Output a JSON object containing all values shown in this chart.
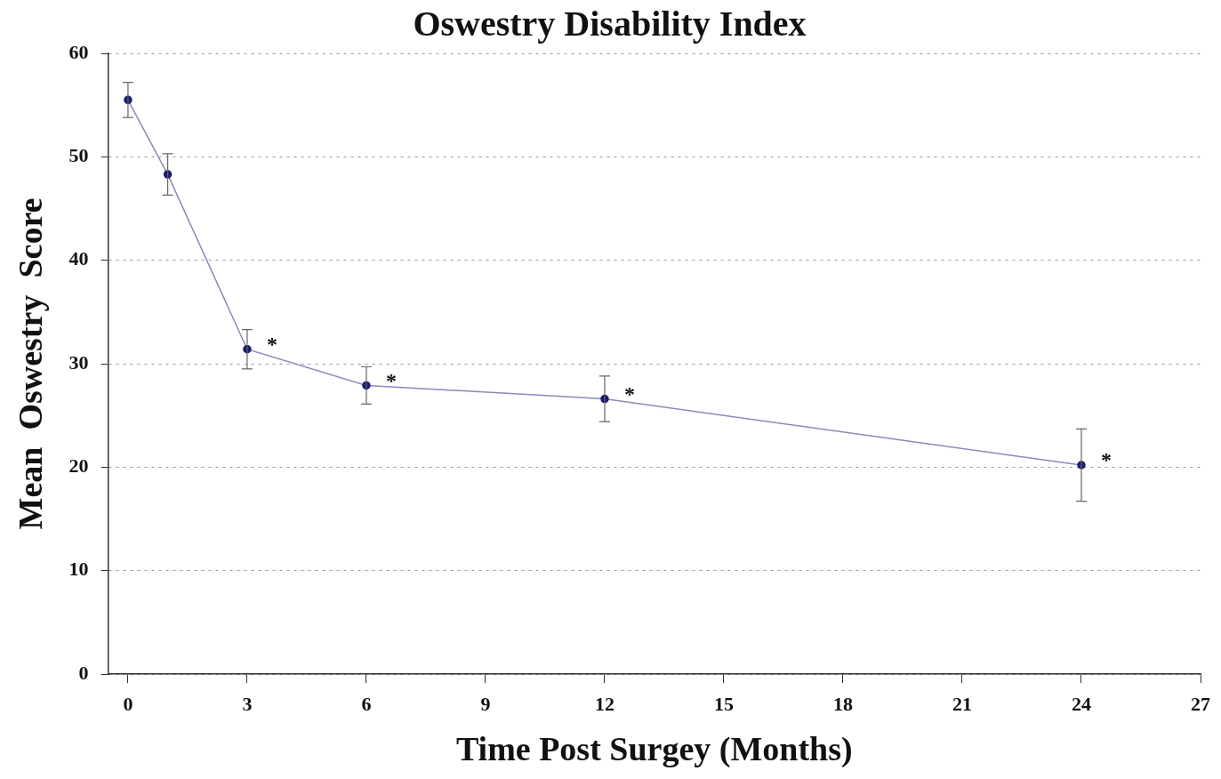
{
  "chart_data": {
    "type": "line",
    "title": "Oswestry Disability Index",
    "xlabel": "Time Post Surgey (Months)",
    "ylabel": "Mean  Oswestry  Score",
    "x": [
      0,
      1,
      3,
      6,
      12,
      24
    ],
    "series": [
      {
        "color": "#1c1c6e",
        "values": [
          55.5,
          48.3,
          31.4,
          27.9,
          26.6,
          20.2
        ],
        "errors": [
          1.7,
          2,
          1.9,
          1.8,
          2.2,
          3.5
        ]
      }
    ],
    "xlim": [
      -0.5,
      27
    ],
    "xticks": [
      0,
      3,
      6,
      9,
      12,
      15,
      18,
      21,
      24,
      27
    ],
    "ylim": [
      0,
      60
    ],
    "yticks": [
      0,
      10,
      20,
      30,
      40,
      50,
      60
    ],
    "grid": "y",
    "legend": false,
    "marker": "circle",
    "line_style": "solid",
    "annotations": [
      {
        "text": "*",
        "x": 3,
        "y": 31.4
      },
      {
        "text": "*",
        "x": 6,
        "y": 27.9
      },
      {
        "text": "*",
        "x": 12,
        "y": 26.6
      },
      {
        "text": "*",
        "x": 24,
        "y": 20.2
      }
    ]
  }
}
